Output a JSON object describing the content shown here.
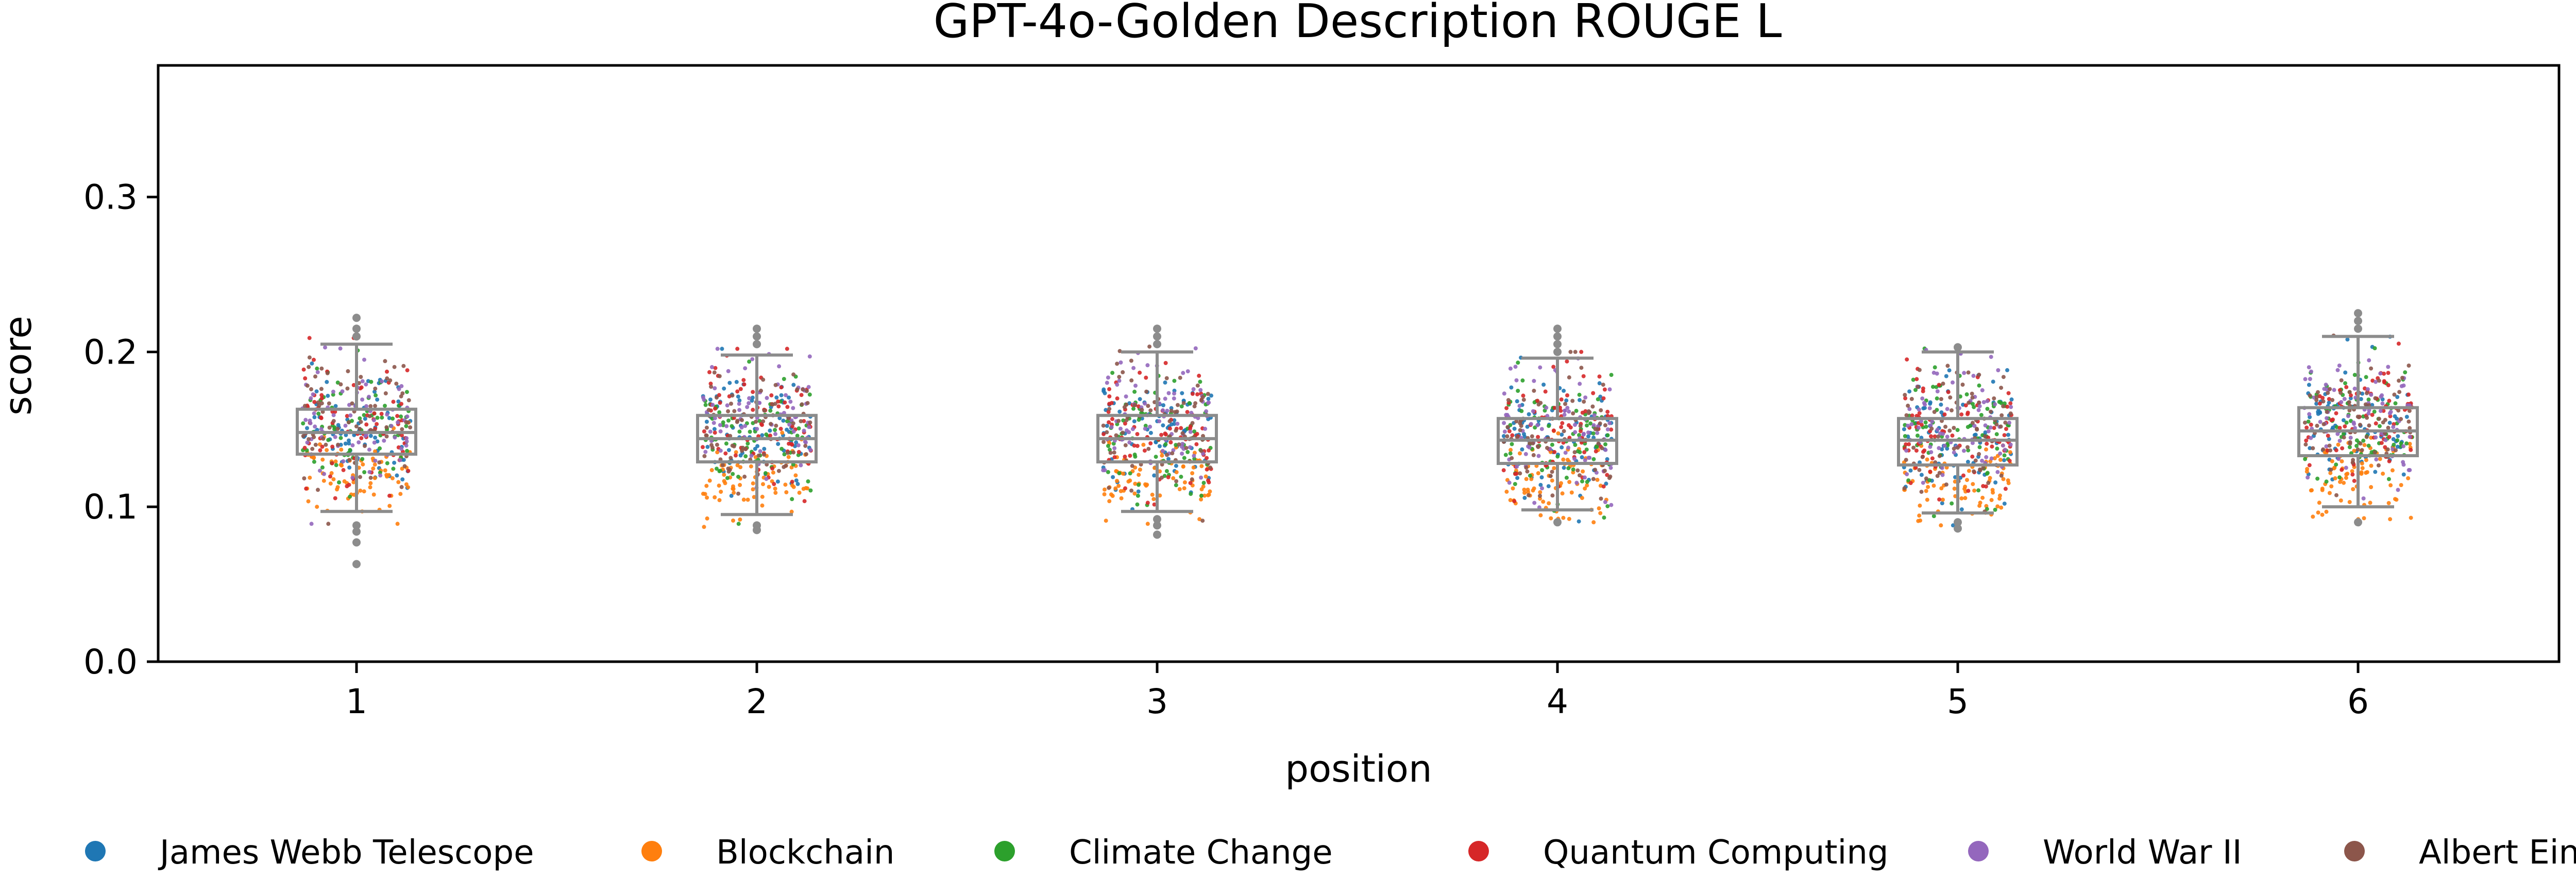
{
  "chart_data": {
    "type": "box-strip",
    "title": "GPT-4o-Golden Description ROUGE L",
    "xlabel": "position",
    "ylabel": "score",
    "ylim": [
      0.0,
      0.385
    ],
    "yticks": [
      0.0,
      0.1,
      0.2,
      0.3
    ],
    "ytick_labels": [
      "0.0",
      "0.1",
      "0.2",
      "0.3"
    ],
    "categories": [
      "1",
      "2",
      "3",
      "4",
      "5",
      "6"
    ],
    "grid": false,
    "legend_position": "bottom",
    "series": [
      {
        "name": "James Webb Telescope",
        "color": "#1f77b4",
        "center": 0.15,
        "spread": 0.02
      },
      {
        "name": "Blockchain",
        "color": "#ff7f0e",
        "center": 0.118,
        "spread": 0.013
      },
      {
        "name": "Climate Change",
        "color": "#2ca02c",
        "center": 0.148,
        "spread": 0.02
      },
      {
        "name": "Quantum Computing",
        "color": "#d62728",
        "center": 0.152,
        "spread": 0.02
      },
      {
        "name": "World War II",
        "color": "#9467bd",
        "center": 0.158,
        "spread": 0.021
      },
      {
        "name": "Albert Einstein",
        "color": "#8c564b",
        "center": 0.153,
        "spread": 0.02
      }
    ],
    "boxes": [
      {
        "position": "1",
        "whisker_low": 0.097,
        "q1": 0.134,
        "median": 0.148,
        "q3": 0.163,
        "whisker_high": 0.205,
        "outliers": [
          0.063,
          0.077,
          0.084,
          0.088,
          0.21,
          0.215,
          0.222
        ]
      },
      {
        "position": "2",
        "whisker_low": 0.095,
        "q1": 0.129,
        "median": 0.144,
        "q3": 0.159,
        "whisker_high": 0.198,
        "outliers": [
          0.085,
          0.088,
          0.205,
          0.21,
          0.215
        ]
      },
      {
        "position": "3",
        "whisker_low": 0.097,
        "q1": 0.129,
        "median": 0.144,
        "q3": 0.159,
        "whisker_high": 0.2,
        "outliers": [
          0.082,
          0.088,
          0.092,
          0.205,
          0.21,
          0.215
        ]
      },
      {
        "position": "4",
        "whisker_low": 0.098,
        "q1": 0.128,
        "median": 0.143,
        "q3": 0.157,
        "whisker_high": 0.196,
        "outliers": [
          0.09,
          0.2,
          0.205,
          0.21,
          0.215
        ]
      },
      {
        "position": "5",
        "whisker_low": 0.096,
        "q1": 0.127,
        "median": 0.143,
        "q3": 0.157,
        "whisker_high": 0.2,
        "outliers": [
          0.086,
          0.09,
          0.203
        ]
      },
      {
        "position": "6",
        "whisker_low": 0.1,
        "q1": 0.133,
        "median": 0.149,
        "q3": 0.164,
        "whisker_high": 0.21,
        "outliers": [
          0.09,
          0.215,
          0.22,
          0.225
        ]
      }
    ],
    "points_per_series_per_position": 75
  }
}
